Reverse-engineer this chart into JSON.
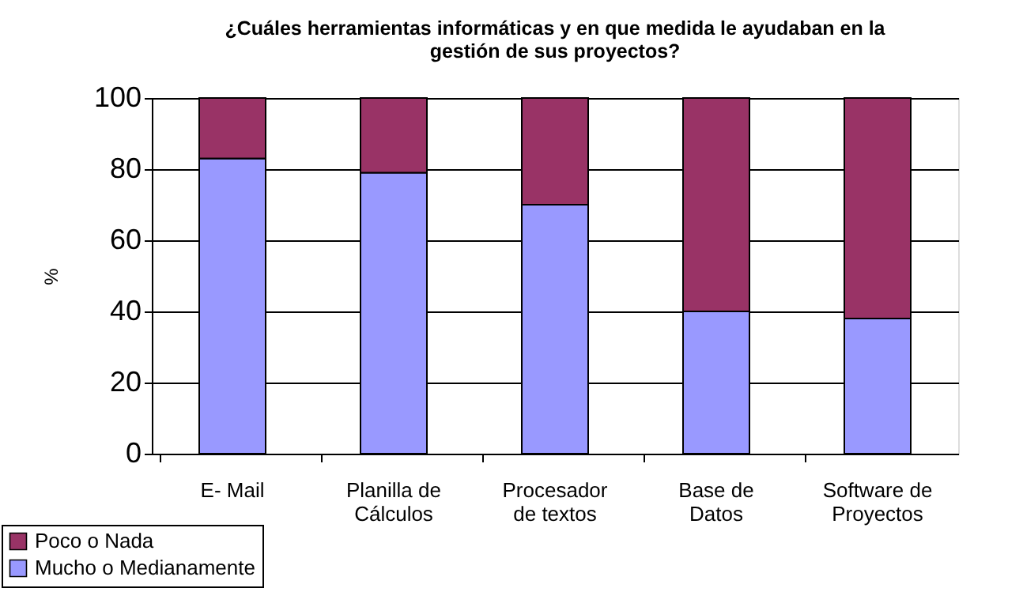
{
  "chart_data": {
    "type": "bar",
    "title": "¿Cuáles herramientas informáticas y en que medida le ayudaban en la\ngestión de sus proyectos?",
    "ylabel": "%",
    "categories": [
      "E- Mail",
      "Planilla de\nCálculos",
      "Procesador\nde textos",
      "Base de\nDatos",
      "Software de\nProyectos"
    ],
    "stacked": true,
    "series": [
      {
        "name": "Mucho o Medianamente",
        "color": "#9999ff",
        "values": [
          83,
          79,
          70,
          40,
          38
        ]
      },
      {
        "name": "Poco o Nada",
        "color": "#993366",
        "values": [
          17,
          21,
          30,
          60,
          62
        ]
      }
    ],
    "ylim": [
      0,
      100
    ],
    "yticks": [
      0,
      20,
      40,
      60,
      80,
      100
    ],
    "grid": "y",
    "legend": "bottom left"
  }
}
